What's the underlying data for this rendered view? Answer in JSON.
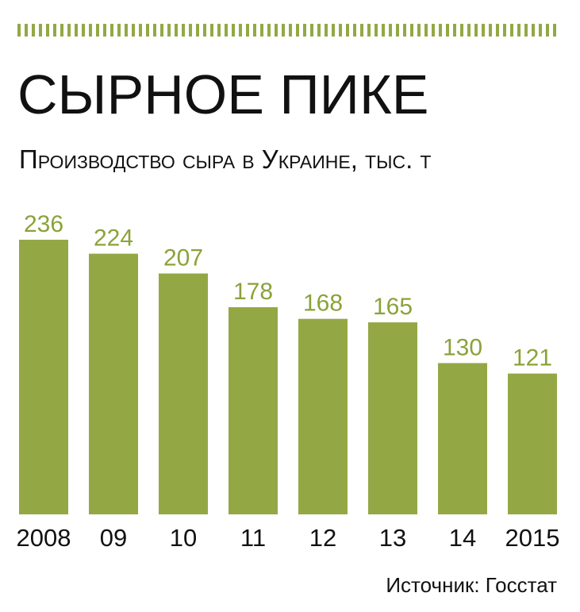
{
  "chart_data": {
    "type": "bar",
    "title": "СЫРНОЕ ПИКЕ",
    "subtitle": "Производство сыра в Украине, тыс. т",
    "categories": [
      "2008",
      "09",
      "10",
      "11",
      "12",
      "13",
      "14",
      "2015"
    ],
    "values": [
      236,
      224,
      207,
      178,
      168,
      165,
      130,
      121
    ],
    "color": "#93a845",
    "source": "Источник: Госстат"
  }
}
